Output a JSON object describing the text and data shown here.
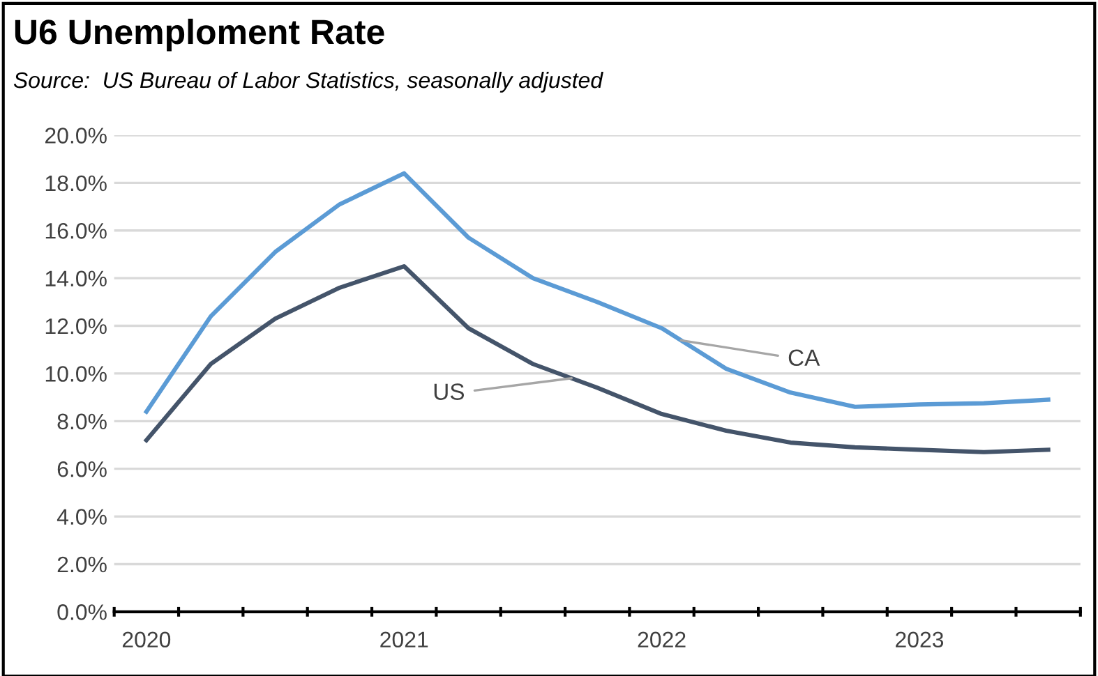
{
  "chart_data": {
    "type": "line",
    "title": "U6 Unemploment Rate",
    "subtitle": "Source:  US Bureau of Labor Statistics, seasonally adjusted",
    "categories": [
      "2020",
      null,
      null,
      null,
      "2021",
      null,
      null,
      null,
      "2022",
      null,
      null,
      null,
      "2023",
      null,
      null
    ],
    "series": [
      {
        "name": "CA",
        "color": "#5b9bd5",
        "values": [
          8.4,
          12.4,
          15.1,
          17.1,
          18.4,
          15.7,
          14.0,
          13.0,
          11.9,
          10.2,
          9.2,
          8.6,
          8.7,
          8.75,
          8.9
        ]
      },
      {
        "name": "US",
        "color": "#44546a",
        "values": [
          7.2,
          10.4,
          12.3,
          13.6,
          14.5,
          11.9,
          10.4,
          9.4,
          8.3,
          7.6,
          7.1,
          6.9,
          6.8,
          6.7,
          6.8
        ]
      }
    ],
    "ylim": [
      0,
      20
    ],
    "yticks": [
      {
        "value": 0,
        "label": "0.0%"
      },
      {
        "value": 2,
        "label": "2.0%"
      },
      {
        "value": 4,
        "label": "4.0%"
      },
      {
        "value": 6,
        "label": "6.0%"
      },
      {
        "value": 8,
        "label": "8.0%"
      },
      {
        "value": 10,
        "label": "10.0%"
      },
      {
        "value": 12,
        "label": "12.0%"
      },
      {
        "value": 14,
        "label": "14.0%"
      },
      {
        "value": 16,
        "label": "16.0%"
      },
      {
        "value": 18,
        "label": "18.0%"
      },
      {
        "value": 20,
        "label": "20.0%"
      }
    ],
    "grid": "y",
    "legend": false,
    "marker": "none",
    "line_style": "solid"
  }
}
